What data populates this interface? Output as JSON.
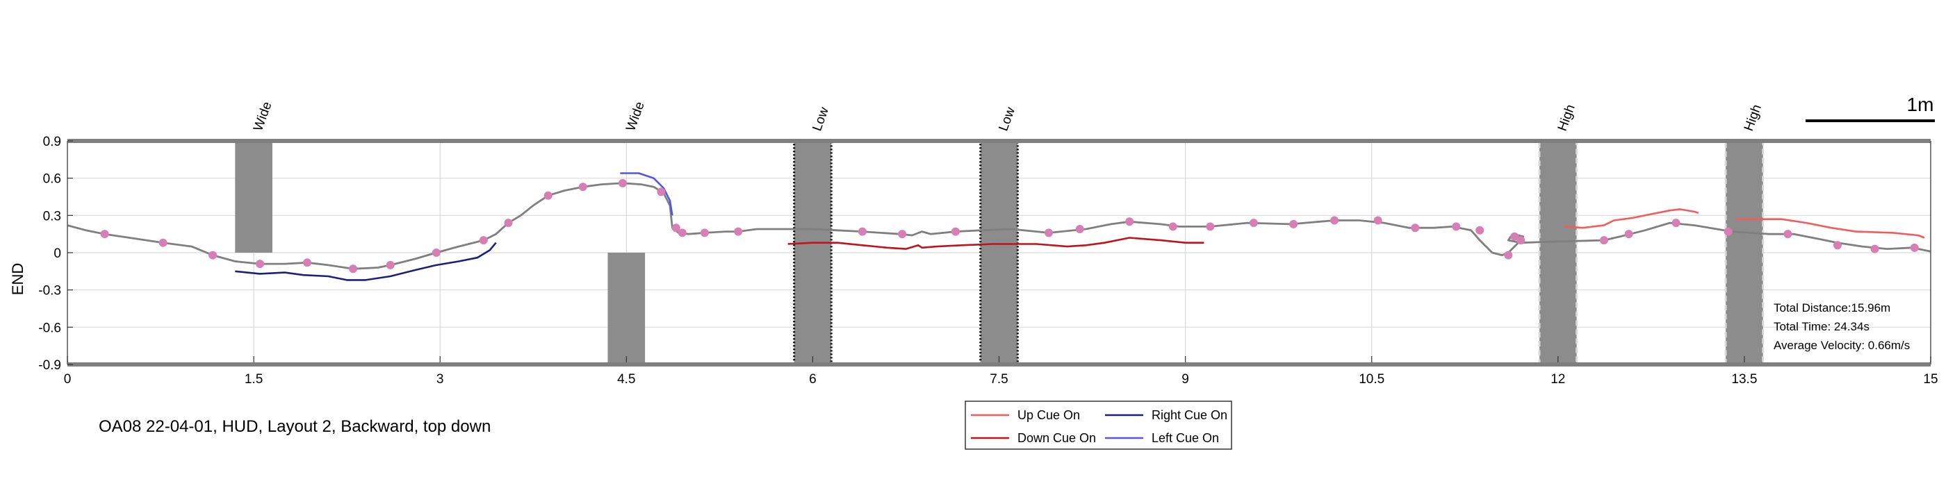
{
  "chart_data": {
    "type": "line",
    "title": "OA08 22-04-01, HUD, Layout 2, Backward, top down",
    "ylabel": "END",
    "xlim": [
      0,
      15
    ],
    "ylim": [
      -0.9,
      0.9
    ],
    "x_ticks": [
      0,
      1.5,
      3,
      4.5,
      6,
      7.5,
      9,
      10.5,
      12,
      13.5,
      15
    ],
    "x_tick_labels": [
      "0",
      "1.5",
      "3",
      "4.5",
      "6",
      "7.5",
      "9",
      "10.5",
      "12",
      "13.5",
      "15"
    ],
    "y_ticks": [
      0.9,
      0.6,
      0.3,
      0,
      -0.3,
      -0.6,
      -0.9
    ],
    "y_tick_labels": [
      "0.9",
      "0.6",
      "0.3",
      "0",
      "-0.3",
      "-0.6",
      "-0.9"
    ],
    "grid": true,
    "scale_bar_label": "1m",
    "stats": [
      "Total Distance:15.96m",
      "Total Time: 24.34s",
      "Average Velocity: 0.66m/s"
    ],
    "obstacles": [
      {
        "label": "Wide",
        "x": [
          1.35,
          1.65
        ],
        "y": [
          0,
          0.9
        ],
        "style": "solid"
      },
      {
        "label": "Wide",
        "x": [
          4.35,
          4.65
        ],
        "y": [
          -0.9,
          0
        ],
        "style": "solid"
      },
      {
        "label": "Low",
        "x": [
          5.85,
          6.15
        ],
        "y": [
          -0.9,
          0.9
        ],
        "style": "dotted-dark"
      },
      {
        "label": "Low",
        "x": [
          7.35,
          7.65
        ],
        "y": [
          -0.9,
          0.9
        ],
        "style": "dotted-dark"
      },
      {
        "label": "High",
        "x": [
          11.85,
          12.15
        ],
        "y": [
          -0.9,
          0.9
        ],
        "style": "dashed-light"
      },
      {
        "label": "High",
        "x": [
          13.35,
          13.65
        ],
        "y": [
          -0.9,
          0.9
        ],
        "style": "dashed-light"
      }
    ],
    "path": {
      "color": "#7f7f7f",
      "points": [
        [
          0,
          0.22
        ],
        [
          0.15,
          0.18
        ],
        [
          0.3,
          0.15
        ],
        [
          0.5,
          0.12
        ],
        [
          0.77,
          0.08
        ],
        [
          1.0,
          0.05
        ],
        [
          1.17,
          -0.02
        ],
        [
          1.35,
          -0.07
        ],
        [
          1.55,
          -0.09
        ],
        [
          1.75,
          -0.09
        ],
        [
          1.93,
          -0.08
        ],
        [
          2.1,
          -0.1
        ],
        [
          2.3,
          -0.13
        ],
        [
          2.5,
          -0.12
        ],
        [
          2.6,
          -0.1
        ],
        [
          2.8,
          -0.05
        ],
        [
          2.97,
          0.0
        ],
        [
          3.15,
          0.05
        ],
        [
          3.35,
          0.1
        ],
        [
          3.45,
          0.15
        ],
        [
          3.55,
          0.24
        ],
        [
          3.65,
          0.3
        ],
        [
          3.75,
          0.38
        ],
        [
          3.87,
          0.46
        ],
        [
          4.0,
          0.5
        ],
        [
          4.15,
          0.53
        ],
        [
          4.3,
          0.55
        ],
        [
          4.47,
          0.56
        ],
        [
          4.62,
          0.55
        ],
        [
          4.72,
          0.53
        ],
        [
          4.8,
          0.48
        ],
        [
          4.85,
          0.38
        ],
        [
          4.87,
          0.2
        ],
        [
          4.92,
          0.16
        ],
        [
          5.0,
          0.15
        ],
        [
          5.13,
          0.16
        ],
        [
          5.3,
          0.17
        ],
        [
          5.4,
          0.17
        ],
        [
          5.55,
          0.19
        ],
        [
          5.8,
          0.19
        ],
        [
          6.0,
          0.19
        ],
        [
          6.2,
          0.18
        ],
        [
          6.4,
          0.17
        ],
        [
          6.7,
          0.15
        ],
        [
          6.8,
          0.14
        ],
        [
          6.88,
          0.17
        ],
        [
          6.95,
          0.15
        ],
        [
          7.15,
          0.17
        ],
        [
          7.35,
          0.18
        ],
        [
          7.6,
          0.19
        ],
        [
          7.9,
          0.16
        ],
        [
          8.2,
          0.19
        ],
        [
          8.4,
          0.23
        ],
        [
          8.55,
          0.25
        ],
        [
          8.8,
          0.23
        ],
        [
          8.95,
          0.21
        ],
        [
          9.2,
          0.21
        ],
        [
          9.5,
          0.24
        ],
        [
          9.85,
          0.23
        ],
        [
          10.2,
          0.26
        ],
        [
          10.4,
          0.26
        ],
        [
          10.6,
          0.24
        ],
        [
          10.8,
          0.2
        ],
        [
          11.0,
          0.2
        ],
        [
          11.15,
          0.21
        ],
        [
          11.3,
          0.18
        ],
        [
          11.37,
          0.1
        ],
        [
          11.47,
          0.0
        ],
        [
          11.55,
          -0.02
        ],
        [
          11.6,
          0.0
        ],
        [
          11.7,
          0.1
        ],
        [
          11.72,
          0.13
        ],
        [
          11.68,
          0.14
        ],
        [
          11.62,
          0.13
        ],
        [
          11.6,
          0.1
        ],
        [
          11.7,
          0.08
        ],
        [
          12.0,
          0.09
        ],
        [
          12.37,
          0.1
        ],
        [
          12.5,
          0.13
        ],
        [
          12.7,
          0.18
        ],
        [
          12.9,
          0.24
        ],
        [
          13.1,
          0.22
        ],
        [
          13.4,
          0.17
        ],
        [
          13.7,
          0.15
        ],
        [
          13.9,
          0.15
        ],
        [
          14.1,
          0.11
        ],
        [
          14.25,
          0.08
        ],
        [
          14.45,
          0.05
        ],
        [
          14.65,
          0.03
        ],
        [
          14.85,
          0.04
        ],
        [
          15.0,
          0.01
        ]
      ]
    },
    "markers": {
      "color": "#d67fb4",
      "points": [
        [
          0.3,
          0.15
        ],
        [
          0.77,
          0.08
        ],
        [
          1.17,
          -0.02
        ],
        [
          1.55,
          -0.09
        ],
        [
          1.93,
          -0.08
        ],
        [
          2.3,
          -0.13
        ],
        [
          2.6,
          -0.1
        ],
        [
          2.97,
          0.0
        ],
        [
          3.35,
          0.1
        ],
        [
          3.55,
          0.24
        ],
        [
          3.87,
          0.46
        ],
        [
          4.15,
          0.53
        ],
        [
          4.47,
          0.56
        ],
        [
          4.78,
          0.49
        ],
        [
          4.9,
          0.2
        ],
        [
          4.95,
          0.16
        ],
        [
          5.13,
          0.16
        ],
        [
          5.4,
          0.17
        ],
        [
          6.4,
          0.17
        ],
        [
          6.72,
          0.15
        ],
        [
          7.15,
          0.17
        ],
        [
          7.9,
          0.16
        ],
        [
          8.15,
          0.19
        ],
        [
          8.55,
          0.25
        ],
        [
          8.9,
          0.21
        ],
        [
          9.2,
          0.21
        ],
        [
          9.55,
          0.24
        ],
        [
          9.87,
          0.23
        ],
        [
          10.2,
          0.26
        ],
        [
          10.55,
          0.26
        ],
        [
          10.85,
          0.2
        ],
        [
          11.18,
          0.21
        ],
        [
          11.37,
          0.18
        ],
        [
          11.6,
          -0.02
        ],
        [
          11.65,
          0.13
        ],
        [
          11.7,
          0.1
        ],
        [
          12.37,
          0.1
        ],
        [
          12.57,
          0.15
        ],
        [
          12.95,
          0.24
        ],
        [
          13.37,
          0.17
        ],
        [
          13.85,
          0.15
        ],
        [
          14.25,
          0.06
        ],
        [
          14.55,
          0.03
        ],
        [
          14.87,
          0.04
        ]
      ]
    },
    "series": [
      {
        "name": "Up Cue On",
        "color": "#f55b5b",
        "segments": [
          [
            [
              12.05,
              0.21
            ],
            [
              12.2,
              0.2
            ],
            [
              12.37,
              0.22
            ],
            [
              12.45,
              0.26
            ],
            [
              12.6,
              0.28
            ],
            [
              12.75,
              0.31
            ],
            [
              12.9,
              0.34
            ],
            [
              12.98,
              0.35
            ],
            [
              13.1,
              0.33
            ],
            [
              13.13,
              0.32
            ]
          ],
          [
            [
              13.43,
              0.27
            ],
            [
              13.6,
              0.27
            ],
            [
              13.8,
              0.27
            ],
            [
              14.0,
              0.24
            ],
            [
              14.2,
              0.2
            ],
            [
              14.4,
              0.17
            ],
            [
              14.7,
              0.16
            ],
            [
              14.9,
              0.14
            ],
            [
              14.95,
              0.12
            ]
          ]
        ]
      },
      {
        "name": "Down Cue On",
        "color": "#c0131b",
        "segments": [
          [
            [
              5.8,
              0.07
            ],
            [
              6.0,
              0.08
            ],
            [
              6.2,
              0.08
            ],
            [
              6.4,
              0.06
            ],
            [
              6.6,
              0.04
            ],
            [
              6.75,
              0.03
            ],
            [
              6.85,
              0.06
            ],
            [
              6.88,
              0.04
            ],
            [
              7.0,
              0.05
            ],
            [
              7.2,
              0.06
            ],
            [
              7.45,
              0.07
            ],
            [
              7.8,
              0.07
            ],
            [
              8.05,
              0.05
            ],
            [
              8.2,
              0.06
            ],
            [
              8.35,
              0.08
            ],
            [
              8.55,
              0.12
            ],
            [
              8.8,
              0.1
            ],
            [
              9.0,
              0.08
            ],
            [
              9.15,
              0.08
            ]
          ]
        ]
      },
      {
        "name": "Right Cue On",
        "color": "#1e1f7a",
        "segments": [
          [
            [
              1.35,
              -0.15
            ],
            [
              1.55,
              -0.17
            ],
            [
              1.75,
              -0.16
            ],
            [
              1.9,
              -0.18
            ],
            [
              2.1,
              -0.19
            ],
            [
              2.25,
              -0.22
            ],
            [
              2.4,
              -0.22
            ],
            [
              2.6,
              -0.19
            ],
            [
              2.8,
              -0.14
            ],
            [
              2.97,
              -0.1
            ],
            [
              3.15,
              -0.07
            ],
            [
              3.3,
              -0.04
            ],
            [
              3.4,
              0.02
            ],
            [
              3.45,
              0.08
            ]
          ]
        ]
      },
      {
        "name": "Left Cue On",
        "color": "#5555dd",
        "segments": [
          [
            [
              4.45,
              0.64
            ],
            [
              4.6,
              0.64
            ],
            [
              4.72,
              0.6
            ],
            [
              4.8,
              0.52
            ],
            [
              4.85,
              0.42
            ],
            [
              4.87,
              0.3
            ]
          ]
        ]
      }
    ],
    "legend": {
      "placement": "bottom-center",
      "entries": [
        {
          "name": "Up Cue On",
          "color": "#f55b5b"
        },
        {
          "name": "Right Cue On",
          "color": "#1e1f7a"
        },
        {
          "name": "Down Cue On",
          "color": "#c0131b"
        },
        {
          "name": "Left Cue On",
          "color": "#5555dd"
        }
      ]
    }
  }
}
